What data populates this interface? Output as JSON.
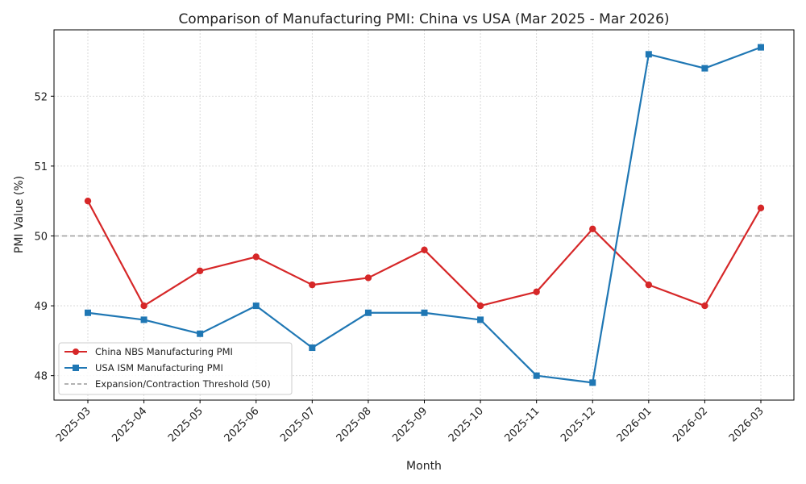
{
  "chart_data": {
    "type": "line",
    "title": "Comparison of Manufacturing PMI: China vs USA (Mar 2025 - Mar 2026)",
    "xlabel": "Month",
    "ylabel": "PMI Value (%)",
    "categories": [
      "2025-03",
      "2025-04",
      "2025-05",
      "2025-06",
      "2025-07",
      "2025-08",
      "2025-09",
      "2025-10",
      "2025-11",
      "2025-12",
      "2026-01",
      "2026-02",
      "2026-03"
    ],
    "ylim": [
      47.65,
      52.95
    ],
    "yticks": [
      48,
      49,
      50,
      51,
      52
    ],
    "grid": true,
    "legend_position": "lower-left",
    "series": [
      {
        "name": "China NBS Manufacturing PMI",
        "color": "#d62728",
        "marker": "circle",
        "values": [
          50.5,
          49.0,
          49.5,
          49.7,
          49.3,
          49.4,
          49.8,
          49.0,
          49.2,
          50.1,
          49.3,
          49.0,
          50.4
        ]
      },
      {
        "name": "USA ISM Manufacturing PMI",
        "color": "#1f77b4",
        "marker": "square",
        "values": [
          48.9,
          48.8,
          48.6,
          49.0,
          48.4,
          48.9,
          48.9,
          48.8,
          48.0,
          47.9,
          52.6,
          52.4,
          52.7
        ]
      }
    ],
    "threshold": {
      "name": "Expansion/Contraction Threshold (50)",
      "value": 50,
      "color": "#999999",
      "style": "dashed"
    }
  }
}
